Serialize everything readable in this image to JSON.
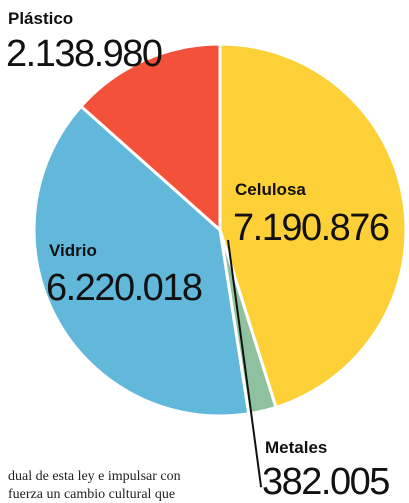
{
  "chart_data": {
    "type": "pie",
    "start": "12 o'clock, clockwise",
    "slices": [
      {
        "label": "Celulosa",
        "value": 7190876,
        "display": "7.190.876",
        "color": "#FDD037"
      },
      {
        "label": "Metales",
        "value": 382005,
        "display": "382.005",
        "color": "#8FC0A0"
      },
      {
        "label": "Vidrio",
        "value": 6220018,
        "display": "6.220.018",
        "color": "#62B8DA"
      },
      {
        "label": "Plástico",
        "value": 2138980,
        "display": "2.138.980",
        "color": "#F4513A"
      }
    ]
  },
  "article": {
    "line1": "dual de esta ley e impulsar con",
    "line2": "fuerza un cambio cultural que"
  }
}
